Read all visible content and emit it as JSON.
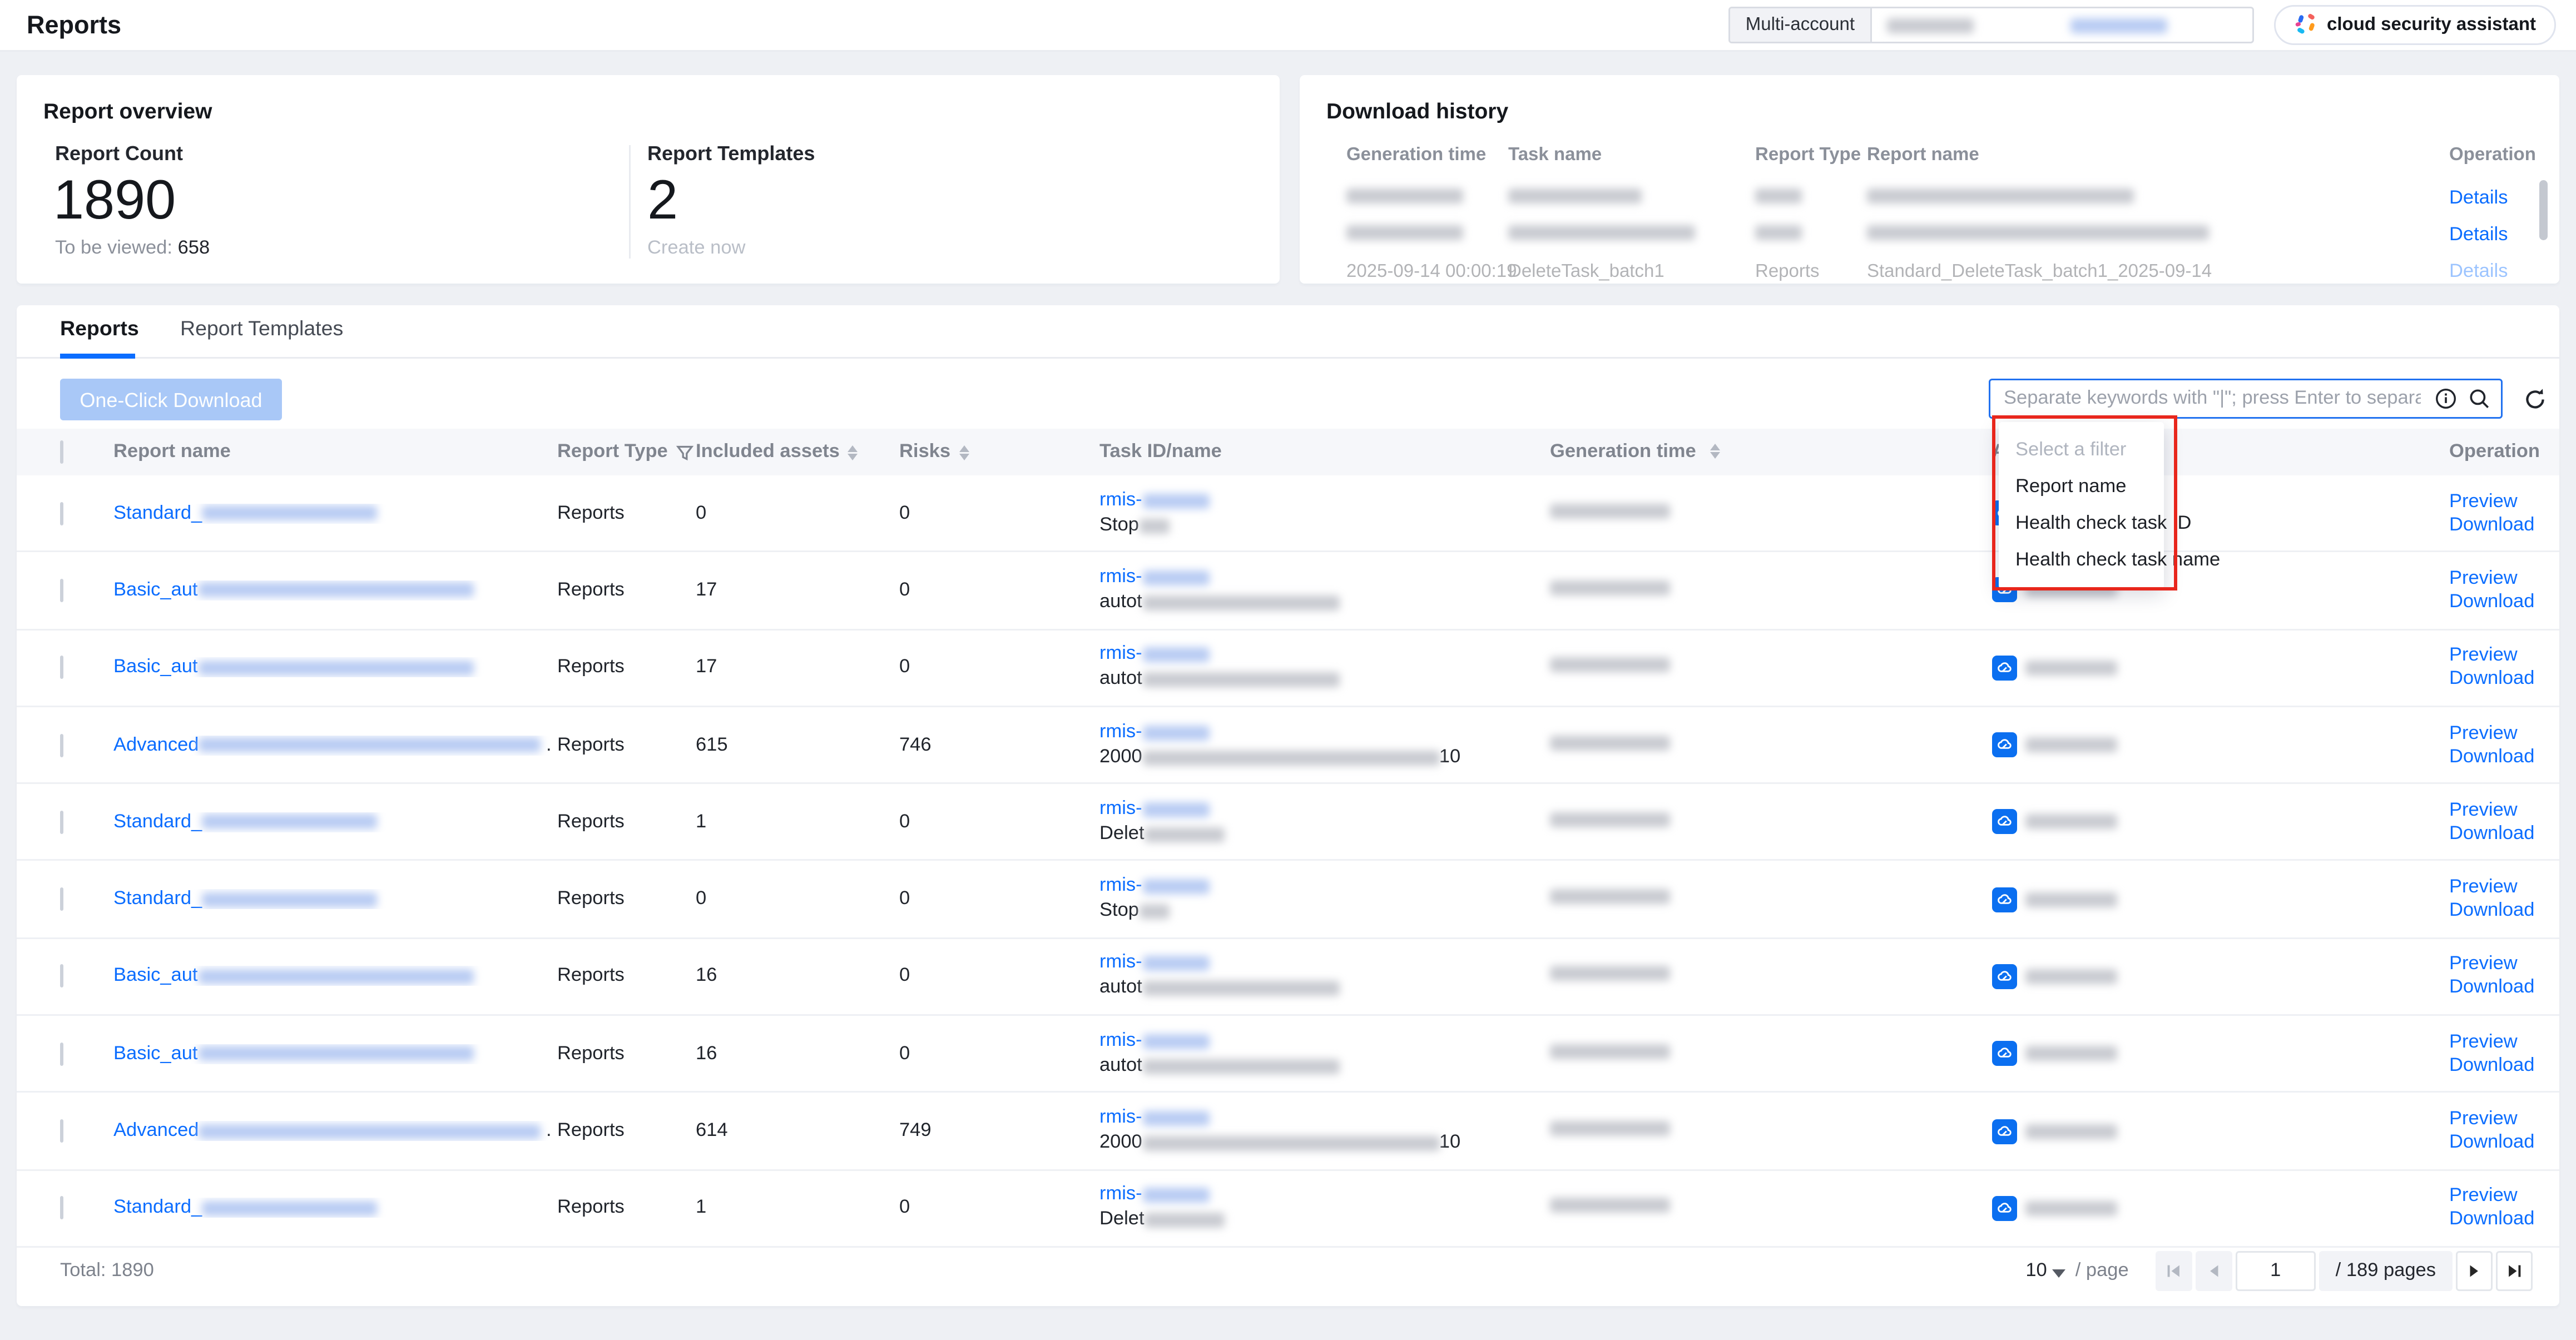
{
  "header": {
    "title": "Reports",
    "multi_account_label": "Multi-account",
    "assistant_label": "cloud security assistant"
  },
  "overview": {
    "title": "Report overview",
    "report_count_label": "Report Count",
    "report_count": "1890",
    "to_be_viewed_label": "To be viewed:",
    "to_be_viewed_value": "658",
    "templates_label": "Report Templates",
    "templates_count": "2",
    "create_now_label": "Create now"
  },
  "download_history": {
    "title": "Download history",
    "columns": [
      "Generation time",
      "Task name",
      "Report Type",
      "Report name",
      "Operation"
    ],
    "rows": [
      {
        "details_label": "Details"
      },
      {
        "details_label": "Details"
      },
      {
        "generation_time": "2025-09-14 00:00:19",
        "task_name": "DeleteTask_batch1",
        "report_type": "Reports",
        "report_name": "Standard_DeleteTask_batch1_2025-09-14",
        "details_label": "Details"
      }
    ]
  },
  "tabs": [
    {
      "label": "Reports"
    },
    {
      "label": "Report Templates"
    }
  ],
  "toolbar": {
    "one_click_download": "One-Click Download",
    "search_placeholder": "Separate keywords with \"|\"; press Enter to separate filter tags"
  },
  "filter_dropdown": {
    "placeholder": "Select a filter",
    "options": [
      "Report name",
      "Health check task ID",
      "Health check task name"
    ]
  },
  "table": {
    "columns": [
      "Report name",
      "Report Type",
      "Included assets",
      "Risks",
      "Task ID/name",
      "Generation time",
      "A",
      "Operation"
    ],
    "ops": {
      "preview": "Preview",
      "download": "Download"
    },
    "rows": [
      {
        "name_prefix": "Standard_",
        "name_suffix": "",
        "report_type": "Reports",
        "included_assets": "0",
        "risks": "0",
        "task_id_prefix": "rmis-",
        "task_name_prefix": "Stop",
        "task_name_suffix": ""
      },
      {
        "name_prefix": "Basic_aut",
        "name_suffix": "",
        "report_type": "Reports",
        "included_assets": "17",
        "risks": "0",
        "task_id_prefix": "rmis-",
        "task_name_prefix": "autot",
        "task_name_suffix": ""
      },
      {
        "name_prefix": "Basic_aut",
        "name_suffix": "",
        "report_type": "Reports",
        "included_assets": "17",
        "risks": "0",
        "task_id_prefix": "rmis-",
        "task_name_prefix": "autot",
        "task_name_suffix": ""
      },
      {
        "name_prefix": "Advanced",
        "name_suffix": ".",
        "report_type": "Reports",
        "included_assets": "615",
        "risks": "746",
        "task_id_prefix": "rmis-",
        "task_name_prefix": "2000",
        "task_name_suffix": "10"
      },
      {
        "name_prefix": "Standard_",
        "name_suffix": "",
        "report_type": "Reports",
        "included_assets": "1",
        "risks": "0",
        "task_id_prefix": "rmis-",
        "task_name_prefix": "Delet",
        "task_name_suffix": ""
      },
      {
        "name_prefix": "Standard_",
        "name_suffix": "",
        "report_type": "Reports",
        "included_assets": "0",
        "risks": "0",
        "task_id_prefix": "rmis-",
        "task_name_prefix": "Stop",
        "task_name_suffix": ""
      },
      {
        "name_prefix": "Basic_aut",
        "name_suffix": "",
        "report_type": "Reports",
        "included_assets": "16",
        "risks": "0",
        "task_id_prefix": "rmis-",
        "task_name_prefix": "autot",
        "task_name_suffix": ""
      },
      {
        "name_prefix": "Basic_aut",
        "name_suffix": "",
        "report_type": "Reports",
        "included_assets": "16",
        "risks": "0",
        "task_id_prefix": "rmis-",
        "task_name_prefix": "autot",
        "task_name_suffix": ""
      },
      {
        "name_prefix": "Advanced",
        "name_suffix": ".",
        "report_type": "Reports",
        "included_assets": "614",
        "risks": "749",
        "task_id_prefix": "rmis-",
        "task_name_prefix": "2000",
        "task_name_suffix": "10"
      },
      {
        "name_prefix": "Standard_",
        "name_suffix": "",
        "report_type": "Reports",
        "included_assets": "1",
        "risks": "0",
        "task_id_prefix": "rmis-",
        "task_name_prefix": "Delet",
        "task_name_suffix": ""
      }
    ]
  },
  "footer": {
    "total_label": "Total: 1890",
    "page_size": "10",
    "per_page_label": "/ page",
    "current_page": "1",
    "pages_label": "/ 189 pages"
  }
}
